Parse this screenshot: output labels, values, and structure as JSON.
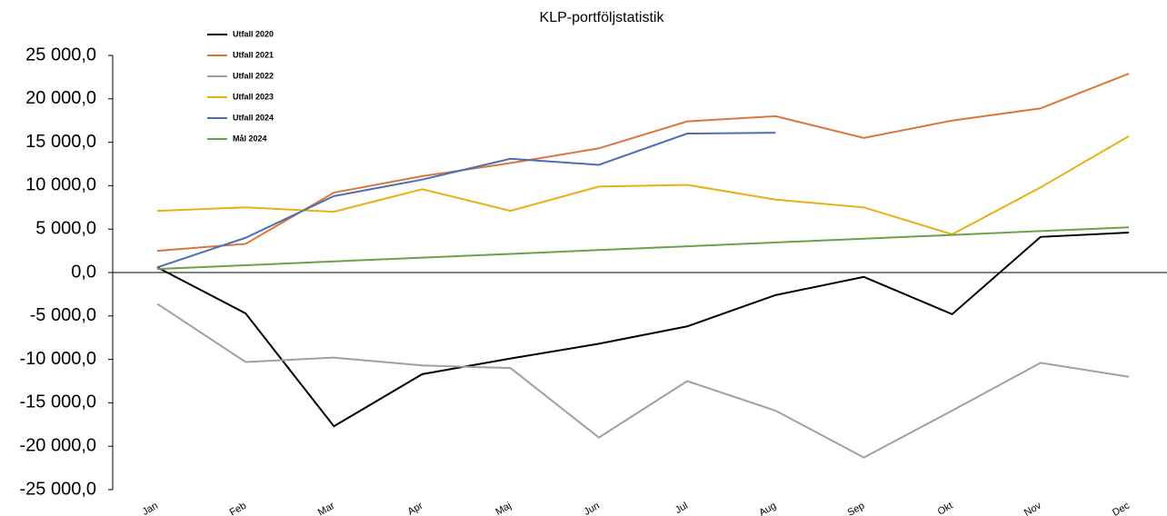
{
  "chart_data": {
    "type": "line",
    "title": "KLP-portföljstatistik",
    "categories": [
      "Jan",
      "Feb",
      "Mar",
      "Apr",
      "Maj",
      "Jun",
      "Jul",
      "Aug",
      "Sep",
      "Okt",
      "Nov",
      "Dec"
    ],
    "series": [
      {
        "name": "Utfall 2020",
        "color": "#000000",
        "values": [
          600,
          -4700,
          -17700,
          -11700,
          -9900,
          -8200,
          -6200,
          -2600,
          -500,
          -4800,
          4100,
          4600
        ]
      },
      {
        "name": "Utfall 2021",
        "color": "#d9773a",
        "values": [
          2500,
          3300,
          9200,
          11100,
          12600,
          14300,
          17400,
          18000,
          15500,
          17500,
          18900,
          22900
        ]
      },
      {
        "name": "Utfall 2022",
        "color": "#a0a0a0",
        "values": [
          -3600,
          -10300,
          -9800,
          -10700,
          -11000,
          -19000,
          -12500,
          -15900,
          -21300,
          -15900,
          -10400,
          -12000
        ]
      },
      {
        "name": "Utfall 2023",
        "color": "#e8b012",
        "values": [
          7100,
          7500,
          7000,
          9600,
          7100,
          9900,
          10100,
          8400,
          7500,
          4400,
          9800,
          15700
        ]
      },
      {
        "name": "Utfall 2024",
        "color": "#4a6fb5",
        "values": [
          600,
          4000,
          8800,
          10700,
          13100,
          12400,
          16000,
          16100,
          null,
          null,
          null,
          null
        ]
      },
      {
        "name": "Mål 2024",
        "color": "#6aa14a",
        "values": [
          400,
          840,
          1280,
          1710,
          2150,
          2590,
          3020,
          3460,
          3900,
          4330,
          4770,
          5200
        ]
      }
    ],
    "ylim": [
      -25000,
      25000
    ],
    "yticks": [
      {
        "value": -25000,
        "label": "-25 000,0"
      },
      {
        "value": -20000,
        "label": "-20 000,0"
      },
      {
        "value": -15000,
        "label": "-15 000,0"
      },
      {
        "value": -10000,
        "label": "-10 000,0"
      },
      {
        "value": -5000,
        "label": "-5 000,0"
      },
      {
        "value": 0,
        "label": "0,0"
      },
      {
        "value": 5000,
        "label": "5 000,0"
      },
      {
        "value": 10000,
        "label": "10 000,0"
      },
      {
        "value": 15000,
        "label": "15 000,0"
      },
      {
        "value": 20000,
        "label": "20 000,0"
      },
      {
        "value": 25000,
        "label": "25 000,0"
      }
    ]
  }
}
